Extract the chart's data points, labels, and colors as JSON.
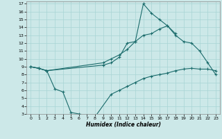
{
  "xlabel": "Humidex (Indice chaleur)",
  "xlim": [
    -0.5,
    23.5
  ],
  "ylim": [
    3,
    17.3
  ],
  "xticks": [
    0,
    1,
    2,
    3,
    4,
    5,
    6,
    7,
    8,
    9,
    10,
    11,
    12,
    13,
    14,
    15,
    16,
    17,
    18,
    19,
    20,
    21,
    22,
    23
  ],
  "yticks": [
    3,
    4,
    5,
    6,
    7,
    8,
    9,
    10,
    11,
    12,
    13,
    14,
    15,
    16,
    17
  ],
  "bg_color": "#cce8e8",
  "line_color": "#1a6b6b",
  "grid_color": "#a8d4d4",
  "curves": [
    {
      "x": [
        0,
        1,
        2,
        9,
        10,
        11,
        12,
        13,
        14,
        15,
        16,
        17,
        18,
        19,
        20,
        21,
        22,
        23
      ],
      "y": [
        9.0,
        8.8,
        8.5,
        9.5,
        10.0,
        10.5,
        11.2,
        12.2,
        13.0,
        13.2,
        13.8,
        14.2,
        13.0,
        12.2,
        12.0,
        11.0,
        9.5,
        8.0
      ]
    },
    {
      "x": [
        0,
        1,
        2,
        9,
        10,
        11,
        12,
        13,
        14,
        15,
        16,
        17,
        18
      ],
      "y": [
        9.0,
        8.8,
        8.5,
        9.2,
        9.5,
        10.2,
        12.0,
        12.2,
        17.0,
        15.8,
        15.0,
        14.2,
        13.2
      ]
    },
    {
      "x": [
        0,
        1,
        2,
        3,
        4,
        5,
        6,
        7,
        8,
        10,
        11,
        12,
        13,
        14,
        15,
        16,
        17,
        18,
        19,
        20,
        21,
        22,
        23
      ],
      "y": [
        9.0,
        8.8,
        8.5,
        6.2,
        5.8,
        3.2,
        3.0,
        2.85,
        2.65,
        5.5,
        6.0,
        6.5,
        7.0,
        7.5,
        7.8,
        8.0,
        8.2,
        8.5,
        8.7,
        8.8,
        8.7,
        8.7,
        8.5
      ]
    }
  ]
}
